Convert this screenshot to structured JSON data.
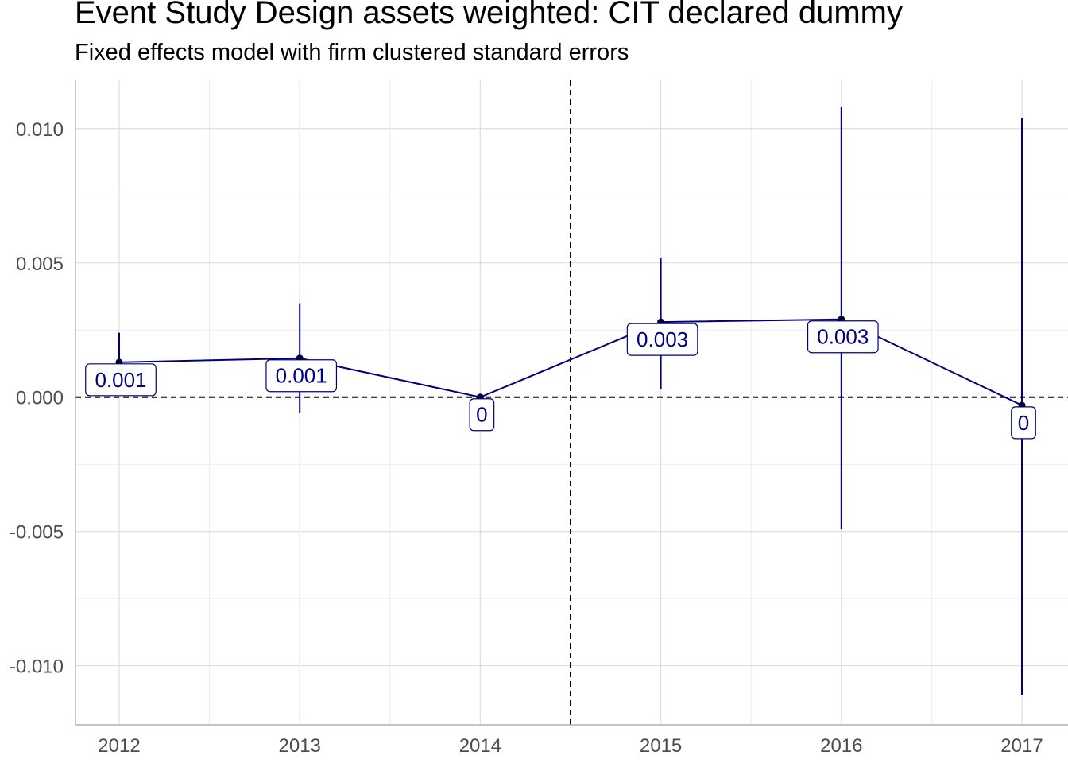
{
  "chart_data": {
    "type": "line",
    "title": "Event Study Design assets weighted: CIT declared dummy",
    "subtitle": "Fixed effects model with firm clustered standard errors",
    "xlabel": "",
    "ylabel": "",
    "categories": [
      "2012",
      "2013",
      "2014",
      "2015",
      "2016",
      "2017"
    ],
    "estimates": [
      0.0013,
      0.00145,
      0.0,
      0.0028,
      0.0029,
      -0.0003
    ],
    "ci_lower": [
      0.0002,
      -0.0006,
      0.0,
      0.0003,
      -0.0049,
      -0.0111
    ],
    "ci_upper": [
      0.0024,
      0.0035,
      0.0,
      0.0052,
      0.0108,
      0.0104
    ],
    "point_labels": [
      "0.001",
      "0.001",
      "0",
      "0.003",
      "0.003",
      "0"
    ],
    "ylim": [
      -0.0122,
      0.0118
    ],
    "yticks": [
      0.01,
      0.005,
      0.0,
      -0.005,
      -0.01
    ],
    "ytick_labels": [
      "0.010",
      "0.005",
      "0.000",
      "-0.005",
      "-0.010"
    ],
    "reference_lines": {
      "hline_y": 0,
      "vline_between": [
        "2014",
        "2015"
      ]
    },
    "grid": true,
    "colors": {
      "series": "#000080",
      "point": "#000033",
      "reference": "#000000",
      "grid": "#e0e0e0",
      "axis_text": "#4d4d4d"
    }
  }
}
